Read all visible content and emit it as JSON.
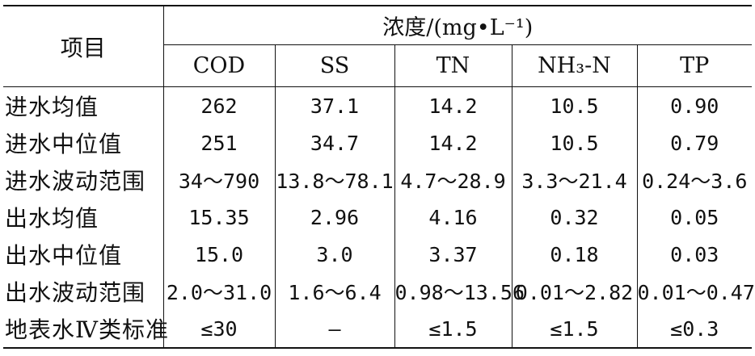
{
  "table": {
    "header_item": "项目",
    "header_concentration": "浓度/(mg•L⁻¹)",
    "columns": [
      "COD",
      "SS",
      "TN",
      "NH₃-N",
      "TP"
    ],
    "rows": [
      {
        "label": "进水均值",
        "values": [
          "262",
          "37.1",
          "14.2",
          "10.5",
          "0.90"
        ]
      },
      {
        "label": "进水中位值",
        "values": [
          "251",
          "34.7",
          "14.2",
          "10.5",
          "0.79"
        ]
      },
      {
        "label": "进水波动范围",
        "values": [
          "34～790",
          "13.8～78.1",
          "4.7～28.9",
          "3.3～21.4",
          "0.24～3.6"
        ]
      },
      {
        "label": "出水均值",
        "values": [
          "15.35",
          "2.96",
          "4.16",
          "0.32",
          "0.05"
        ]
      },
      {
        "label": "出水中位值",
        "values": [
          "15.0",
          "3.0",
          "3.37",
          "0.18",
          "0.03"
        ]
      },
      {
        "label": "出水波动范围",
        "values": [
          "2.0～31.0",
          "1.6～6.4",
          "0.98～13.56",
          "0.01～2.82",
          "0.01～0.47"
        ]
      },
      {
        "label": "地表水Ⅳ类标准",
        "values": [
          "≤30",
          "—",
          "≤1.5",
          "≤1.5",
          "≤0.3"
        ]
      }
    ]
  }
}
